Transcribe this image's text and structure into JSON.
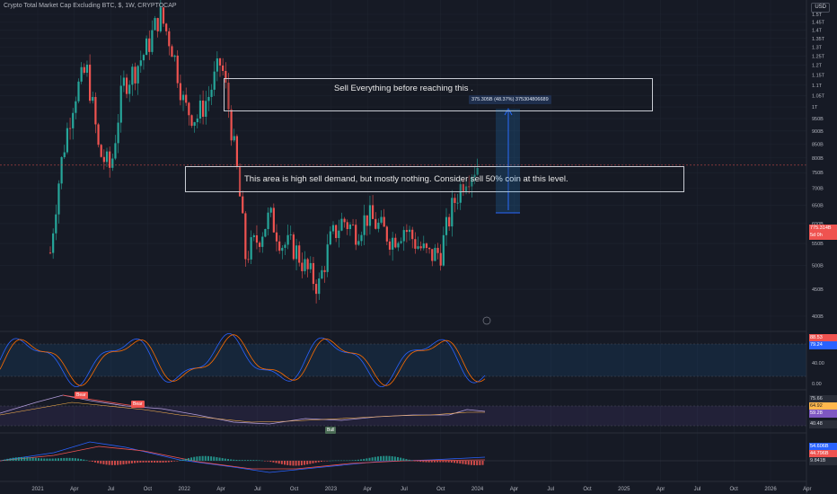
{
  "header": {
    "title": "Crypto Total Market Cap Excluding BTC, $, 1W, CRYPTOCAP",
    "currency": "USD"
  },
  "annotations": {
    "sell_everything": "Sell Everything before reaching this .",
    "high_demand": "This area is high sell demand, but mostly nothing. Consider sell 50% coin at this level.",
    "measure_label": "375.305B (48.37%) 375304806689"
  },
  "price_tags": {
    "last_price": "775.314B",
    "countdown": "5d 0h"
  },
  "indicator_tags": {
    "stoch_k": "88.53",
    "stoch_d": "79.24",
    "rsi_upper": "75.66",
    "rsi_value": "64.92",
    "rsi_mid": "59.28",
    "rsi_lower": "40.48",
    "macd_a": "54.606B",
    "macd_b": "44.796B",
    "macd_c": "9.841B"
  },
  "signals": {
    "bear_1": "Bear",
    "bear_2": "Bear",
    "bull_1": "Bull"
  },
  "colors": {
    "background": "#161a25",
    "up": "#26a69a",
    "down": "#ef5350",
    "stoch_k": "#2962ff",
    "stoch_d": "#ff6d00",
    "rsi": "#b39ddb"
  },
  "chart_data": {
    "type": "candlestick",
    "title": "Crypto Total Market Cap Excluding BTC, $, 1W, CRYPTOCAP",
    "scale": "log",
    "price_ticks": [
      "1.5T",
      "1.45T",
      "1.4T",
      "1.35T",
      "1.3T",
      "1.25T",
      "1.2T",
      "1.15T",
      "1.1T",
      "1.05T",
      "1T",
      "950B",
      "900B",
      "850B",
      "800B",
      "750B",
      "700B",
      "650B",
      "600B",
      "550B",
      "500B",
      "450B",
      "400B"
    ],
    "x_ticks": [
      "2021",
      "Apr",
      "Jul",
      "Oct",
      "2022",
      "Apr",
      "Jul",
      "Oct",
      "2023",
      "Apr",
      "Jul",
      "Oct",
      "2024",
      "Apr",
      "Jul",
      "Oct",
      "2025",
      "Apr",
      "Jul",
      "Oct",
      "2026",
      "Apr"
    ],
    "oscillator_ticks": [
      "40.00",
      "0.00"
    ],
    "last_price": "775.314B",
    "close_path": [
      [
        "2021-01",
        380
      ],
      [
        "2021-02",
        520
      ],
      [
        "2021-03",
        800
      ],
      [
        "2021-04",
        1050
      ],
      [
        "2021-05",
        1180
      ],
      [
        "2021-06",
        820
      ],
      [
        "2021-07",
        760
      ],
      [
        "2021-08",
        1100
      ],
      [
        "2021-09",
        1180
      ],
      [
        "2021-10",
        1300
      ],
      [
        "2021-11",
        1500
      ],
      [
        "2021-12",
        1300
      ],
      [
        "2022-01",
        1000
      ],
      [
        "2022-02",
        950
      ],
      [
        "2022-03",
        1050
      ],
      [
        "2022-04",
        1220
      ],
      [
        "2022-05",
        860
      ],
      [
        "2022-06",
        520
      ],
      [
        "2022-07",
        560
      ],
      [
        "2022-08",
        620
      ],
      [
        "2022-09",
        550
      ],
      [
        "2022-10",
        540
      ],
      [
        "2022-11",
        490
      ],
      [
        "2022-12",
        455
      ],
      [
        "2023-01",
        560
      ],
      [
        "2023-02",
        610
      ],
      [
        "2023-03",
        580
      ],
      [
        "2023-04",
        620
      ],
      [
        "2023-05",
        590
      ],
      [
        "2023-06",
        560
      ],
      [
        "2023-07",
        590
      ],
      [
        "2023-08",
        550
      ],
      [
        "2023-09",
        520
      ],
      [
        "2023-10",
        530
      ],
      [
        "2023-11",
        650
      ],
      [
        "2023-12",
        740
      ],
      [
        "2024-01",
        775
      ]
    ]
  }
}
